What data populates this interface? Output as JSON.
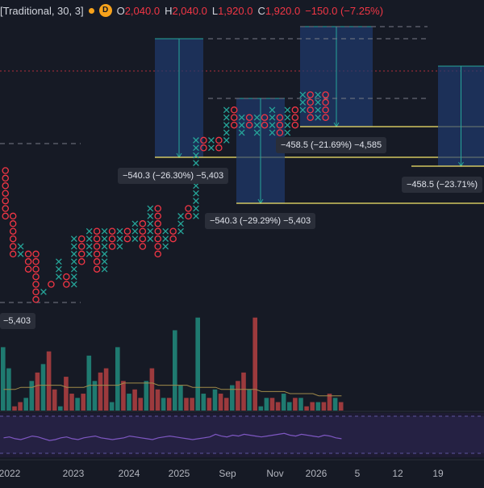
{
  "legend": {
    "symbol": "[Traditional, 30, 3]",
    "badge": "D",
    "items": [
      {
        "k": "O",
        "v": "2,040.0"
      },
      {
        "k": "H",
        "v": "2,040.0"
      },
      {
        "k": "L",
        "v": "1,920.0"
      },
      {
        "k": "C",
        "v": "1,920.0"
      },
      {
        "k": "",
        "v": "−150.0 (−7.25%)"
      }
    ]
  },
  "measure_labels": [
    "−540.3 (−26.30%) −5,403",
    "−540.3 (−29.29%) −5,403",
    "−458.5 (−21.69%) −4,585",
    "−458.5 (−23.71%)",
    "−5,403"
  ],
  "time_axis": [
    "2022",
    "2023",
    "2024",
    "2025",
    "Sep",
    "Nov",
    "2026",
    "5",
    "12",
    "19"
  ],
  "colors": {
    "up": "#26a69a",
    "down": "#f23645",
    "volume_up": "#1f7a70",
    "volume_down": "#9c3a3d",
    "rsi": "#7e57c2",
    "measure": "#f5e76b"
  },
  "chart_data": [
    {
      "type": "point-and-figure",
      "columns": [
        {
          "kind": "O",
          "top": 18,
          "bottom": 11
        },
        {
          "kind": "O",
          "top": 12,
          "bottom": 6
        },
        {
          "kind": "X",
          "top": 8,
          "bottom": 6
        },
        {
          "kind": "O",
          "top": 7,
          "bottom": 4
        },
        {
          "kind": "O",
          "top": 7,
          "bottom": 0
        },
        {
          "kind": "X",
          "top": 2,
          "bottom": 1
        },
        {
          "kind": "O",
          "top": 3,
          "bottom": 2
        },
        {
          "kind": "X",
          "top": 6,
          "bottom": 3
        },
        {
          "kind": "O",
          "top": 4,
          "bottom": 2
        },
        {
          "kind": "X",
          "top": 9,
          "bottom": 2
        },
        {
          "kind": "O",
          "top": 9,
          "bottom": 5
        },
        {
          "kind": "X",
          "top": 10,
          "bottom": 6
        },
        {
          "kind": "O",
          "top": 10,
          "bottom": 4
        },
        {
          "kind": "X",
          "top": 10,
          "bottom": 4
        },
        {
          "kind": "O",
          "top": 10,
          "bottom": 7
        },
        {
          "kind": "X",
          "top": 10,
          "bottom": 7
        },
        {
          "kind": "O",
          "top": 10,
          "bottom": 8
        },
        {
          "kind": "X",
          "top": 11,
          "bottom": 8
        },
        {
          "kind": "O",
          "top": 11,
          "bottom": 7
        },
        {
          "kind": "X",
          "top": 13,
          "bottom": 8
        },
        {
          "kind": "O",
          "top": 13,
          "bottom": 6
        },
        {
          "kind": "X",
          "top": 10,
          "bottom": 7
        },
        {
          "kind": "O",
          "top": 10,
          "bottom": 8
        },
        {
          "kind": "X",
          "top": 12,
          "bottom": 9
        },
        {
          "kind": "O",
          "top": 13,
          "bottom": 11
        },
        {
          "kind": "X",
          "top": 22,
          "bottom": 11
        },
        {
          "kind": "O",
          "top": 22,
          "bottom": 20
        },
        {
          "kind": "X",
          "top": 22,
          "bottom": 20
        },
        {
          "kind": "O",
          "top": 22,
          "bottom": 20
        },
        {
          "kind": "X",
          "top": 26,
          "bottom": 21
        },
        {
          "kind": "O",
          "top": 26,
          "bottom": 23
        },
        {
          "kind": "X",
          "top": 25,
          "bottom": 22
        },
        {
          "kind": "O",
          "top": 25,
          "bottom": 23
        },
        {
          "kind": "X",
          "top": 25,
          "bottom": 22
        },
        {
          "kind": "O",
          "top": 25,
          "bottom": 23
        },
        {
          "kind": "X",
          "top": 26,
          "bottom": 22
        },
        {
          "kind": "O",
          "top": 25,
          "bottom": 22
        },
        {
          "kind": "X",
          "top": 26,
          "bottom": 22
        },
        {
          "kind": "O",
          "top": 26,
          "bottom": 23
        },
        {
          "kind": "X",
          "top": 28,
          "bottom": 25
        },
        {
          "kind": "O",
          "top": 28,
          "bottom": 24
        },
        {
          "kind": "X",
          "top": 28,
          "bottom": 24
        },
        {
          "kind": "O",
          "top": 28,
          "bottom": 24
        }
      ]
    },
    {
      "type": "bar",
      "name": "volume",
      "values": [
        30,
        20,
        2,
        4,
        6,
        14,
        18,
        22,
        28,
        10,
        2,
        16,
        8,
        6,
        8,
        26,
        14,
        18,
        20,
        4,
        30,
        14,
        8,
        10,
        6,
        14,
        20,
        10,
        6,
        6,
        38,
        12,
        6,
        6,
        44,
        8,
        6,
        10,
        8,
        6,
        12,
        14,
        18,
        10,
        44,
        2,
        6,
        6,
        4,
        8,
        4,
        6,
        6,
        2,
        4,
        4,
        4,
        8,
        6,
        4
      ],
      "ma": [
        10,
        10,
        10,
        11,
        11,
        11,
        12,
        12,
        12,
        12,
        12,
        11,
        11,
        11,
        11,
        12,
        12,
        12,
        12,
        12,
        12,
        13,
        13,
        13,
        13,
        13,
        13,
        12,
        12,
        12,
        12,
        12,
        12,
        11,
        11,
        11,
        11,
        11,
        10,
        10,
        10,
        10,
        10,
        10,
        10,
        9,
        9,
        9,
        9,
        9,
        8,
        8,
        8,
        8,
        8,
        7,
        7,
        7,
        7,
        7
      ]
    },
    {
      "type": "line",
      "name": "rsi",
      "values": [
        44,
        46,
        42,
        40,
        44,
        48,
        46,
        42,
        38,
        40,
        44,
        46,
        42,
        40,
        44,
        46,
        48,
        44,
        42,
        40,
        42,
        44,
        48,
        46,
        44,
        42,
        40,
        44,
        46,
        48,
        46,
        44,
        42,
        40,
        42,
        44,
        46,
        52,
        48,
        46,
        50,
        48,
        52,
        50,
        48,
        46,
        48,
        50,
        52,
        54,
        50,
        48,
        52,
        50,
        48,
        46,
        50,
        48,
        44,
        42
      ]
    }
  ]
}
